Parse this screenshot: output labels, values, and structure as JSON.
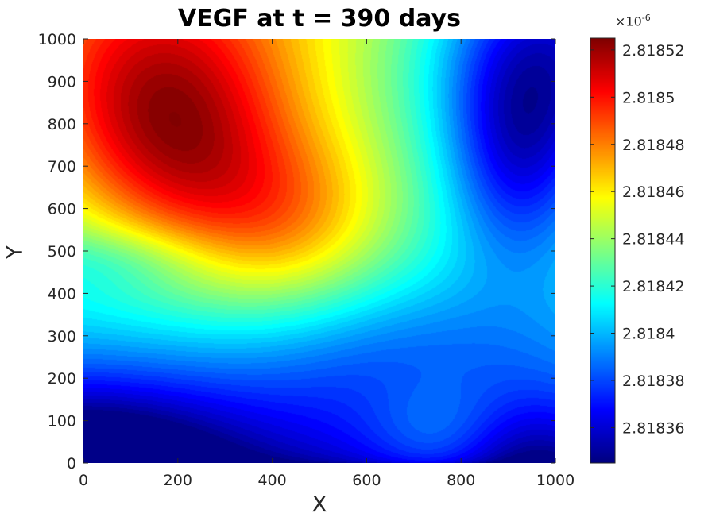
{
  "chart_data": {
    "type": "heatmap",
    "title": "VEGF at t = 390 days",
    "xlabel": "X",
    "ylabel": "Y",
    "xlim": [
      0,
      1000
    ],
    "ylim": [
      0,
      1000
    ],
    "x_ticks": [
      "0",
      "200",
      "400",
      "600",
      "800",
      "1000"
    ],
    "y_ticks": [
      "0",
      "100",
      "200",
      "300",
      "400",
      "500",
      "600",
      "700",
      "800",
      "900",
      "1000"
    ],
    "colormap": "jet",
    "colorbar": {
      "exponent_base": "×10",
      "exponent_power": "-6",
      "range": [
        2.818345,
        2.818525
      ],
      "ticks": [
        2.81836,
        2.81838,
        2.8184,
        2.81842,
        2.81844,
        2.81846,
        2.81848,
        2.8185,
        2.81852
      ],
      "tick_labels": [
        "2.81836",
        "2.81838",
        "2.8184",
        "2.81842",
        "2.81844",
        "2.81846",
        "2.81848",
        "2.8185",
        "2.81852"
      ]
    },
    "field_features": [
      {
        "kind": "maximum",
        "x": 150,
        "y": 870,
        "value": 2.818525
      },
      {
        "kind": "minimum",
        "x": 0,
        "y": 0,
        "value": 2.818345
      },
      {
        "kind": "minimum",
        "x": 1000,
        "y": 1000,
        "value": 2.818352
      },
      {
        "kind": "minimum",
        "x": 950,
        "y": 0,
        "value": 2.818358
      }
    ]
  }
}
